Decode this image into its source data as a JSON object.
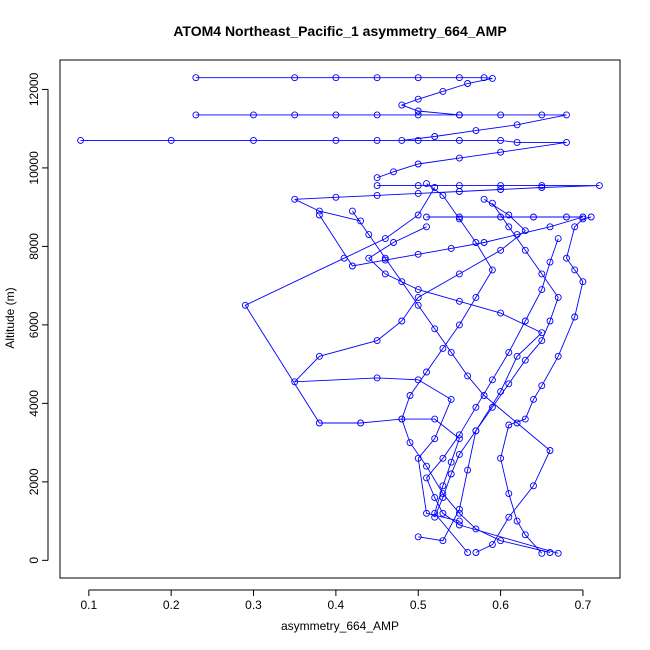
{
  "chart_data": {
    "type": "scatter",
    "title": "ATOM4 Northeast_Pacific_1 asymmetry_664_AMP",
    "xlabel": "asymmetry_664_AMP",
    "ylabel": "Altitude (m)",
    "xlim": [
      0.065,
      0.745
    ],
    "ylim": [
      -450,
      12750
    ],
    "xticks": [
      0.1,
      0.2,
      0.3,
      0.4,
      0.5,
      0.6,
      0.7
    ],
    "xtick_labels": [
      "0.1",
      "0.2",
      "0.3",
      "0.4",
      "0.5",
      "0.6",
      "0.7"
    ],
    "yticks": [
      0,
      2000,
      4000,
      6000,
      8000,
      10000,
      12000
    ],
    "ytick_labels": [
      "0",
      "2000",
      "4000",
      "6000",
      "8000",
      "10000",
      "12000"
    ],
    "color": "#0000ff",
    "marker": "open-circle",
    "connect_points": true,
    "grid": false,
    "legend": "none",
    "series": [
      {
        "x": [
          0.65,
          0.63,
          0.62,
          0.61,
          0.6,
          0.61,
          0.63,
          0.64,
          0.65,
          0.67,
          0.69,
          0.7,
          0.69,
          0.68,
          0.69,
          0.7,
          0.71
        ],
        "y": [
          180,
          650,
          1000,
          1700,
          2600,
          3450,
          3600,
          4100,
          4450,
          5200,
          6200,
          7100,
          7400,
          7700,
          8500,
          8700,
          8750
        ]
      },
      {
        "x": [
          0.67,
          0.55,
          0.53,
          0.52,
          0.51,
          0.53,
          0.55,
          0.57,
          0.59,
          0.61,
          0.63,
          0.65,
          0.66,
          0.67
        ],
        "y": [
          180,
          900,
          1200,
          1600,
          2100,
          2600,
          3200,
          3900,
          4600,
          5300,
          6100,
          6900,
          7600,
          8200
        ]
      },
      {
        "x": [
          0.52,
          0.53,
          0.54,
          0.55,
          0.57,
          0.59,
          0.61,
          0.63,
          0.65,
          0.66,
          0.67,
          0.65,
          0.63,
          0.61,
          0.59
        ],
        "y": [
          1100,
          1600,
          2200,
          2700,
          3300,
          3900,
          4500,
          5100,
          5600,
          6100,
          6700,
          7300,
          7900,
          8500,
          9100
        ]
      },
      {
        "x": [
          0.66,
          0.6,
          0.57,
          0.55,
          0.53,
          0.51,
          0.49,
          0.48,
          0.49,
          0.51,
          0.53,
          0.55,
          0.57,
          0.59,
          0.57,
          0.55,
          0.53,
          0.51
        ],
        "y": [
          200,
          500,
          800,
          1200,
          1700,
          2400,
          3000,
          3600,
          4200,
          4800,
          5400,
          6000,
          6700,
          7400,
          8100,
          8700,
          9300,
          9600
        ]
      },
      {
        "x": [
          0.56,
          0.52,
          0.53,
          0.54,
          0.55,
          0.52,
          0.48,
          0.43,
          0.38,
          0.29,
          0.41,
          0.46,
          0.5,
          0.52
        ],
        "y": [
          200,
          1200,
          1900,
          2500,
          3100,
          3600,
          3600,
          3500,
          3500,
          6500,
          7700,
          8200,
          8800,
          9500
        ]
      },
      {
        "x": [
          0.55,
          0.51,
          0.5,
          0.52,
          0.54,
          0.5,
          0.45,
          0.35,
          0.38,
          0.45,
          0.48,
          0.5,
          0.55,
          0.6,
          0.63,
          0.61,
          0.58
        ],
        "y": [
          1000,
          1200,
          2600,
          3100,
          4100,
          4600,
          4650,
          4550,
          5200,
          5600,
          6100,
          6700,
          7300,
          7900,
          8400,
          8800,
          9200
        ]
      },
      {
        "x": [
          0.5,
          0.53,
          0.55,
          0.56,
          0.57,
          0.6,
          0.62,
          0.65,
          0.6,
          0.55,
          0.5,
          0.46,
          0.44,
          0.47,
          0.51
        ],
        "y": [
          600,
          500,
          1300,
          2300,
          3300,
          4300,
          5200,
          5800,
          6300,
          6600,
          6900,
          7300,
          7700,
          8100,
          8500
        ]
      },
      {
        "x": [
          0.57,
          0.59,
          0.61,
          0.64,
          0.66,
          0.62,
          0.58,
          0.56,
          0.54,
          0.52,
          0.5,
          0.48,
          0.46,
          0.44,
          0.42
        ],
        "y": [
          200,
          400,
          1100,
          1900,
          2800,
          3500,
          4200,
          4700,
          5300,
          5900,
          6500,
          7100,
          7700,
          8300,
          8900
        ]
      },
      {
        "x": [
          0.23,
          0.35,
          0.4,
          0.45,
          0.5,
          0.55,
          0.58,
          0.59,
          0.56,
          0.53,
          0.5,
          0.48,
          0.5,
          0.55
        ],
        "y": [
          12300,
          12300,
          12300,
          12300,
          12300,
          12300,
          12300,
          12280,
          12150,
          11950,
          11750,
          11600,
          11450,
          11350
        ]
      },
      {
        "x": [
          0.23,
          0.3,
          0.35,
          0.4,
          0.45,
          0.5,
          0.55,
          0.6,
          0.65,
          0.68,
          0.62,
          0.57,
          0.52,
          0.48
        ],
        "y": [
          11350,
          11350,
          11350,
          11350,
          11350,
          11350,
          11350,
          11350,
          11350,
          11350,
          11100,
          10950,
          10800,
          10700
        ]
      },
      {
        "x": [
          0.09,
          0.2,
          0.3,
          0.4,
          0.45,
          0.5,
          0.55,
          0.6,
          0.62,
          0.68,
          0.6,
          0.55,
          0.5,
          0.47,
          0.45
        ],
        "y": [
          10700,
          10700,
          10700,
          10700,
          10700,
          10700,
          10700,
          10700,
          10650,
          10650,
          10400,
          10250,
          10100,
          9900,
          9750
        ]
      },
      {
        "x": [
          0.45,
          0.5,
          0.55,
          0.6,
          0.65,
          0.72,
          0.65,
          0.6,
          0.55,
          0.5,
          0.45,
          0.4,
          0.35,
          0.38,
          0.43
        ],
        "y": [
          9550,
          9550,
          9550,
          9550,
          9550,
          9550,
          9500,
          9450,
          9400,
          9350,
          9300,
          9250,
          9200,
          8900,
          8650
        ]
      },
      {
        "x": [
          0.51,
          0.55,
          0.6,
          0.64,
          0.68,
          0.7,
          0.66,
          0.62,
          0.58,
          0.54,
          0.5,
          0.46,
          0.42,
          0.38
        ],
        "y": [
          8750,
          8750,
          8750,
          8750,
          8750,
          8750,
          8500,
          8300,
          8100,
          7950,
          7800,
          7650,
          7500,
          8800
        ]
      }
    ]
  }
}
